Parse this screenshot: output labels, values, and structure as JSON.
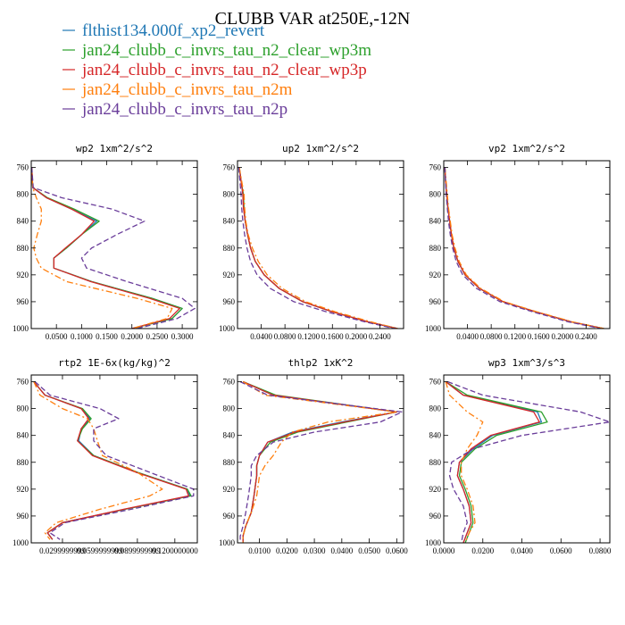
{
  "title": "CLUBB VAR at250E,-12N",
  "legend": [
    {
      "name": "flthist134.000f_xp2_revert",
      "color": "#1f77b4",
      "dash": "solid"
    },
    {
      "name": "jan24_clubb_c_invrs_tau_n2_clear_wp3m",
      "color": "#2ca02c",
      "dash": "solid"
    },
    {
      "name": "jan24_clubb_c_invrs_tau_n2_clear_wp3p",
      "color": "#d62728",
      "dash": "solid"
    },
    {
      "name": "jan24_clubb_c_invrs_tau_n2m",
      "color": "#ff7f0e",
      "dash": "dashdot"
    },
    {
      "name": "jan24_clubb_c_invrs_tau_n2p",
      "color": "#6a3d9a",
      "dash": "dash"
    }
  ],
  "chart_data": [
    {
      "type": "line",
      "title": "wp2  1xm^2/s^2",
      "xlim": [
        0,
        0.33
      ],
      "ylim": [
        1000,
        750
      ],
      "xticks": [
        0.05,
        0.1,
        0.15,
        0.2,
        0.25,
        0.3
      ],
      "xtick_labels": [
        "0.0500",
        "0.1000",
        "0.1500",
        "0.2000",
        "0.2500",
        "0.3000"
      ],
      "yticks": [
        760,
        800,
        840,
        880,
        920,
        960,
        1000
      ],
      "ytick_labels": [
        "760",
        "800",
        "840",
        "880",
        "920",
        "960",
        "1000"
      ],
      "y": [
        760,
        790,
        805,
        822,
        840,
        860,
        880,
        895,
        910,
        930,
        955,
        970,
        985,
        1000
      ],
      "series": [
        {
          "name": "flthist134.000f_xp2_revert",
          "x": [
            0.001,
            0.003,
            0.03,
            0.08,
            0.13,
            0.1,
            0.07,
            0.045,
            0.045,
            0.12,
            0.24,
            0.3,
            0.28,
            0.2
          ]
        },
        {
          "name": "jan24_clubb_c_invrs_tau_n2_clear_wp3m",
          "x": [
            0.001,
            0.003,
            0.032,
            0.085,
            0.135,
            0.1,
            0.07,
            0.045,
            0.045,
            0.12,
            0.24,
            0.3,
            0.28,
            0.2
          ]
        },
        {
          "name": "jan24_clubb_c_invrs_tau_n2_clear_wp3p",
          "x": [
            0.001,
            0.003,
            0.03,
            0.08,
            0.125,
            0.1,
            0.068,
            0.045,
            0.045,
            0.118,
            0.235,
            0.295,
            0.275,
            0.2
          ]
        },
        {
          "name": "jan24_clubb_c_invrs_tau_n2m",
          "x": [
            0.001,
            0.003,
            0.01,
            0.02,
            0.02,
            0.012,
            0.005,
            0.01,
            0.02,
            0.07,
            0.21,
            0.28,
            0.27,
            0.2
          ]
        },
        {
          "name": "jan24_clubb_c_invrs_tau_n2p",
          "x": [
            0.001,
            0.004,
            0.06,
            0.16,
            0.225,
            0.17,
            0.12,
            0.1,
            0.11,
            0.19,
            0.3,
            0.325,
            0.29,
            0.21
          ]
        }
      ]
    },
    {
      "type": "line",
      "title": "up2  1xm^2/s^2",
      "xlim": [
        0,
        0.28
      ],
      "ylim": [
        1000,
        750
      ],
      "xticks": [
        0.04,
        0.08,
        0.12,
        0.16,
        0.2,
        0.24
      ],
      "xtick_labels": [
        "0.0400",
        "0.0800",
        "0.1200",
        "0.1600",
        "0.2000",
        "0.2400"
      ],
      "yticks": [
        760,
        800,
        840,
        880,
        920,
        960,
        1000
      ],
      "ytick_labels": [
        "760",
        "800",
        "840",
        "880",
        "920",
        "960",
        "1000"
      ],
      "y": [
        760,
        780,
        800,
        820,
        840,
        860,
        880,
        900,
        920,
        940,
        960,
        975,
        990,
        1000
      ],
      "series": [
        {
          "name": "flthist134.000f_xp2_revert",
          "x": [
            0.003,
            0.006,
            0.009,
            0.01,
            0.013,
            0.017,
            0.022,
            0.03,
            0.045,
            0.07,
            0.11,
            0.16,
            0.22,
            0.27
          ]
        },
        {
          "name": "jan24_clubb_c_invrs_tau_n2_clear_wp3m",
          "x": [
            0.003,
            0.006,
            0.01,
            0.011,
            0.013,
            0.017,
            0.022,
            0.03,
            0.045,
            0.07,
            0.11,
            0.16,
            0.22,
            0.27
          ]
        },
        {
          "name": "jan24_clubb_c_invrs_tau_n2_clear_wp3p",
          "x": [
            0.003,
            0.006,
            0.009,
            0.01,
            0.013,
            0.017,
            0.022,
            0.03,
            0.045,
            0.07,
            0.11,
            0.16,
            0.22,
            0.27
          ]
        },
        {
          "name": "jan24_clubb_c_invrs_tau_n2m",
          "x": [
            0.003,
            0.007,
            0.011,
            0.012,
            0.014,
            0.018,
            0.025,
            0.035,
            0.05,
            0.075,
            0.115,
            0.165,
            0.225,
            0.27
          ]
        },
        {
          "name": "jan24_clubb_c_invrs_tau_n2p",
          "x": [
            0.002,
            0.004,
            0.006,
            0.007,
            0.009,
            0.012,
            0.016,
            0.022,
            0.033,
            0.055,
            0.095,
            0.15,
            0.215,
            0.265
          ]
        }
      ]
    },
    {
      "type": "line",
      "title": "vp2  1xm^2/s^2",
      "xlim": [
        0,
        0.28
      ],
      "ylim": [
        1000,
        750
      ],
      "xticks": [
        0.04,
        0.08,
        0.12,
        0.16,
        0.2,
        0.24
      ],
      "xtick_labels": [
        "0.0400",
        "0.0800",
        "0.1200",
        "0.1600",
        "0.2000",
        "0.2400"
      ],
      "yticks": [
        760,
        800,
        840,
        880,
        920,
        960,
        1000
      ],
      "ytick_labels": [
        "760",
        "800",
        "840",
        "880",
        "920",
        "960",
        "1000"
      ],
      "y": [
        760,
        780,
        800,
        820,
        840,
        860,
        880,
        900,
        920,
        940,
        960,
        975,
        990,
        1000
      ],
      "series": [
        {
          "name": "flthist134.000f_xp2_revert",
          "x": [
            0.002,
            0.003,
            0.005,
            0.007,
            0.01,
            0.013,
            0.017,
            0.024,
            0.036,
            0.06,
            0.1,
            0.155,
            0.215,
            0.27
          ]
        },
        {
          "name": "jan24_clubb_c_invrs_tau_n2_clear_wp3m",
          "x": [
            0.002,
            0.003,
            0.005,
            0.007,
            0.01,
            0.013,
            0.017,
            0.024,
            0.036,
            0.06,
            0.1,
            0.155,
            0.215,
            0.27
          ]
        },
        {
          "name": "jan24_clubb_c_invrs_tau_n2_clear_wp3p",
          "x": [
            0.002,
            0.003,
            0.005,
            0.007,
            0.01,
            0.013,
            0.017,
            0.024,
            0.036,
            0.06,
            0.1,
            0.155,
            0.215,
            0.27
          ]
        },
        {
          "name": "jan24_clubb_c_invrs_tau_n2m",
          "x": [
            0.002,
            0.004,
            0.006,
            0.008,
            0.011,
            0.014,
            0.019,
            0.026,
            0.038,
            0.062,
            0.102,
            0.157,
            0.217,
            0.27
          ]
        },
        {
          "name": "jan24_clubb_c_invrs_tau_n2p",
          "x": [
            0.002,
            0.003,
            0.004,
            0.006,
            0.008,
            0.011,
            0.015,
            0.021,
            0.032,
            0.055,
            0.095,
            0.15,
            0.21,
            0.265
          ]
        }
      ]
    },
    {
      "type": "line",
      "title": "rtp2  1E-6x(kg/kg)^2",
      "xlim": [
        0.005,
        0.138
      ],
      "ylim": [
        1000,
        750
      ],
      "xticks": [
        0.03,
        0.06,
        0.09,
        0.12
      ],
      "xtick_labels": [
        "0.0299999999",
        "0.0599999999",
        "0.0899999999",
        "0.1200000000"
      ],
      "yticks": [
        760,
        800,
        840,
        880,
        920,
        960,
        1000
      ],
      "ytick_labels": [
        "760",
        "800",
        "840",
        "880",
        "920",
        "960",
        "1000"
      ],
      "y": [
        760,
        780,
        800,
        815,
        830,
        848,
        870,
        895,
        920,
        930,
        950,
        970,
        985,
        995
      ],
      "series": [
        {
          "name": "flthist134.000f_xp2_revert",
          "x": [
            0.007,
            0.016,
            0.045,
            0.052,
            0.045,
            0.043,
            0.055,
            0.09,
            0.13,
            0.132,
            0.08,
            0.03,
            0.018,
            0.022
          ]
        },
        {
          "name": "jan24_clubb_c_invrs_tau_n2_clear_wp3m",
          "x": [
            0.007,
            0.016,
            0.046,
            0.053,
            0.046,
            0.042,
            0.055,
            0.09,
            0.13,
            0.133,
            0.08,
            0.03,
            0.018,
            0.022
          ]
        },
        {
          "name": "jan24_clubb_c_invrs_tau_n2_clear_wp3p",
          "x": [
            0.007,
            0.016,
            0.045,
            0.051,
            0.045,
            0.042,
            0.054,
            0.089,
            0.129,
            0.131,
            0.079,
            0.03,
            0.018,
            0.022
          ]
        },
        {
          "name": "jan24_clubb_c_invrs_tau_n2m",
          "x": [
            0.007,
            0.012,
            0.03,
            0.05,
            0.055,
            0.058,
            0.062,
            0.09,
            0.11,
            0.1,
            0.06,
            0.025,
            0.016,
            0.02
          ]
        },
        {
          "name": "jan24_clubb_c_invrs_tau_n2p",
          "x": [
            0.008,
            0.02,
            0.06,
            0.075,
            0.055,
            0.055,
            0.065,
            0.1,
            0.135,
            0.135,
            0.085,
            0.032,
            0.02,
            0.028
          ]
        }
      ]
    },
    {
      "type": "line",
      "title": "thlp2  1xK^2",
      "xlim": [
        0.002,
        0.0625
      ],
      "ylim": [
        1000,
        750
      ],
      "xticks": [
        0.01,
        0.02,
        0.03,
        0.04,
        0.05,
        0.06
      ],
      "xtick_labels": [
        "0.0100",
        "0.0200",
        "0.0300",
        "0.0400",
        "0.0500",
        "0.0600"
      ],
      "yticks": [
        760,
        800,
        840,
        880,
        920,
        960,
        1000
      ],
      "ytick_labels": [
        "760",
        "800",
        "840",
        "880",
        "920",
        "960",
        "1000"
      ],
      "y": [
        760,
        780,
        805,
        820,
        835,
        850,
        870,
        885,
        900,
        930,
        955,
        975,
        990,
        1000
      ],
      "series": [
        {
          "name": "flthist134.000f_xp2_revert",
          "x": [
            0.004,
            0.015,
            0.06,
            0.04,
            0.022,
            0.013,
            0.01,
            0.009,
            0.009,
            0.008,
            0.007,
            0.005,
            0.004,
            0.004
          ]
        },
        {
          "name": "jan24_clubb_c_invrs_tau_n2_clear_wp3m",
          "x": [
            0.004,
            0.016,
            0.06,
            0.042,
            0.024,
            0.014,
            0.01,
            0.009,
            0.009,
            0.008,
            0.007,
            0.005,
            0.004,
            0.004
          ]
        },
        {
          "name": "jan24_clubb_c_invrs_tau_n2_clear_wp3p",
          "x": [
            0.004,
            0.015,
            0.06,
            0.041,
            0.023,
            0.013,
            0.01,
            0.009,
            0.009,
            0.008,
            0.007,
            0.005,
            0.004,
            0.004
          ]
        },
        {
          "name": "jan24_clubb_c_invrs_tau_n2m",
          "x": [
            0.004,
            0.012,
            0.06,
            0.035,
            0.022,
            0.018,
            0.015,
            0.012,
            0.01,
            0.009,
            0.007,
            0.005,
            0.004,
            0.004
          ]
        },
        {
          "name": "jan24_clubb_c_invrs_tau_n2p",
          "x": [
            0.003,
            0.013,
            0.062,
            0.054,
            0.03,
            0.015,
            0.009,
            0.007,
            0.007,
            0.006,
            0.005,
            0.004,
            0.003,
            0.003
          ]
        }
      ]
    },
    {
      "type": "line",
      "title": "wp3  1xm^3/s^3",
      "xlim": [
        0,
        0.085
      ],
      "ylim": [
        1000,
        750
      ],
      "xticks": [
        0,
        0.02,
        0.04,
        0.06,
        0.08
      ],
      "xtick_labels": [
        "0.0000",
        "0.0200",
        "0.0400",
        "0.0600",
        "0.0800"
      ],
      "yticks": [
        760,
        800,
        840,
        880,
        920,
        960,
        1000
      ],
      "ytick_labels": [
        "760",
        "800",
        "840",
        "880",
        "920",
        "960",
        "1000"
      ],
      "y": [
        760,
        780,
        805,
        820,
        840,
        860,
        880,
        900,
        920,
        945,
        970,
        985,
        1000
      ],
      "series": [
        {
          "name": "flthist134.000f_xp2_revert",
          "x": [
            0.001,
            0.01,
            0.048,
            0.05,
            0.025,
            0.015,
            0.008,
            0.007,
            0.01,
            0.013,
            0.014,
            0.012,
            0.01
          ]
        },
        {
          "name": "jan24_clubb_c_invrs_tau_n2_clear_wp3m",
          "x": [
            0.001,
            0.012,
            0.05,
            0.053,
            0.027,
            0.016,
            0.009,
            0.008,
            0.011,
            0.014,
            0.015,
            0.013,
            0.011
          ]
        },
        {
          "name": "jan24_clubb_c_invrs_tau_n2_clear_wp3p",
          "x": [
            0.001,
            0.01,
            0.046,
            0.049,
            0.024,
            0.014,
            0.008,
            0.007,
            0.01,
            0.013,
            0.014,
            0.012,
            0.01
          ]
        },
        {
          "name": "jan24_clubb_c_invrs_tau_n2m",
          "x": [
            0.001,
            0.003,
            0.012,
            0.02,
            0.017,
            0.012,
            0.009,
            0.009,
            0.012,
            0.015,
            0.016,
            0.013,
            0.011
          ]
        },
        {
          "name": "jan24_clubb_c_invrs_tau_n2p",
          "x": [
            0.002,
            0.02,
            0.07,
            0.085,
            0.04,
            0.015,
            0.004,
            0.003,
            0.005,
            0.01,
            0.012,
            0.01,
            0.009
          ]
        }
      ]
    }
  ]
}
